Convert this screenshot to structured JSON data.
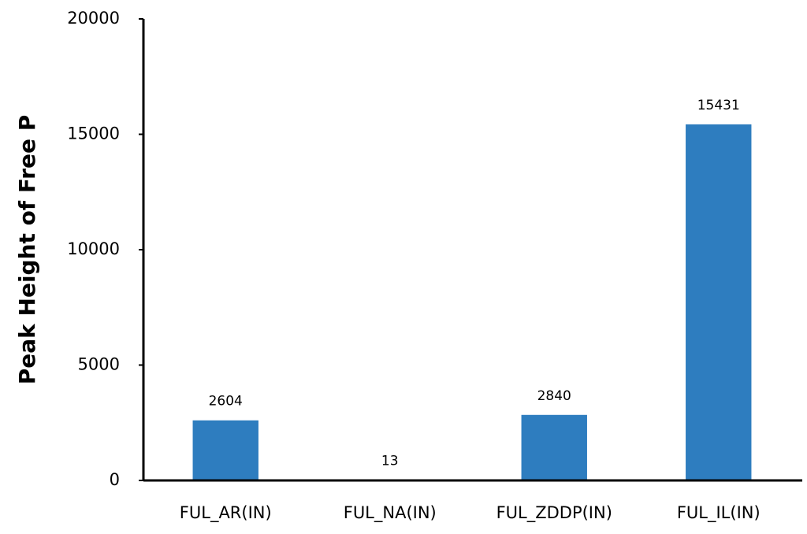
{
  "chart_data": {
    "type": "bar",
    "y_label": "Peak Height of Free P",
    "categories": [
      "FUL_AR(IN)",
      "FUL_NA(IN)",
      "FUL_ZDDP(IN)",
      "FUL_IL(IN)"
    ],
    "values": [
      2604,
      13,
      2840,
      15431
    ],
    "color": "#2e7dbf",
    "ylim": [
      0,
      20000
    ],
    "yticks": [
      0,
      5000,
      10000,
      15000,
      20000
    ],
    "grid": false
  }
}
